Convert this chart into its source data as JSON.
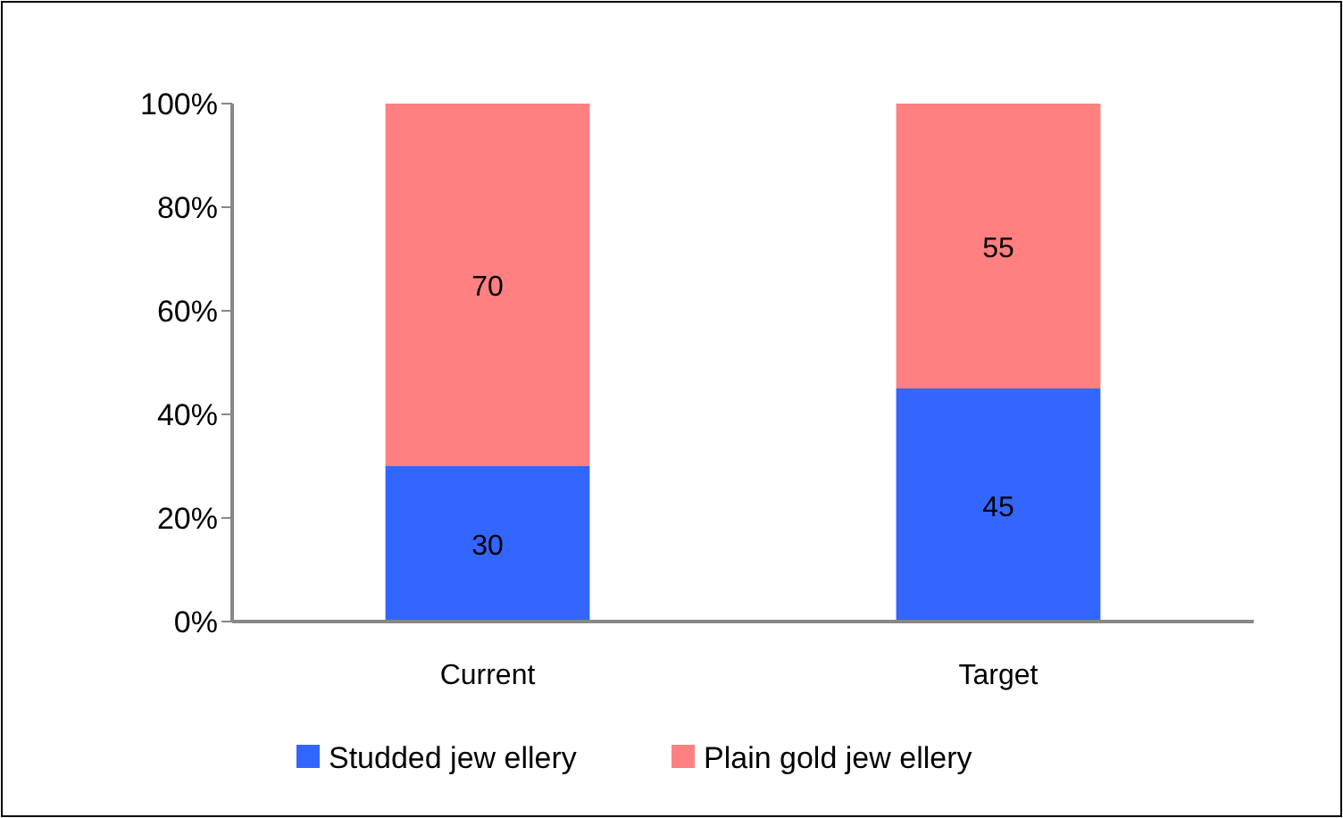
{
  "chart_data": {
    "type": "bar",
    "stacked": true,
    "categories": [
      "Current",
      "Target"
    ],
    "series": [
      {
        "name": "Studded jew ellery",
        "color": "#3366ff",
        "values": [
          30,
          45
        ]
      },
      {
        "name": "Plain gold jew ellery",
        "color": "#ff8080",
        "values": [
          70,
          55
        ]
      }
    ],
    "ylim": [
      0,
      100
    ],
    "yticks": [
      {
        "value": 0,
        "label": "0%"
      },
      {
        "value": 20,
        "label": "20%"
      },
      {
        "value": 40,
        "label": "40%"
      },
      {
        "value": 60,
        "label": "60%"
      },
      {
        "value": 80,
        "label": "80%"
      },
      {
        "value": 100,
        "label": "100%"
      }
    ],
    "data_labels": true,
    "legend": "bottom"
  }
}
